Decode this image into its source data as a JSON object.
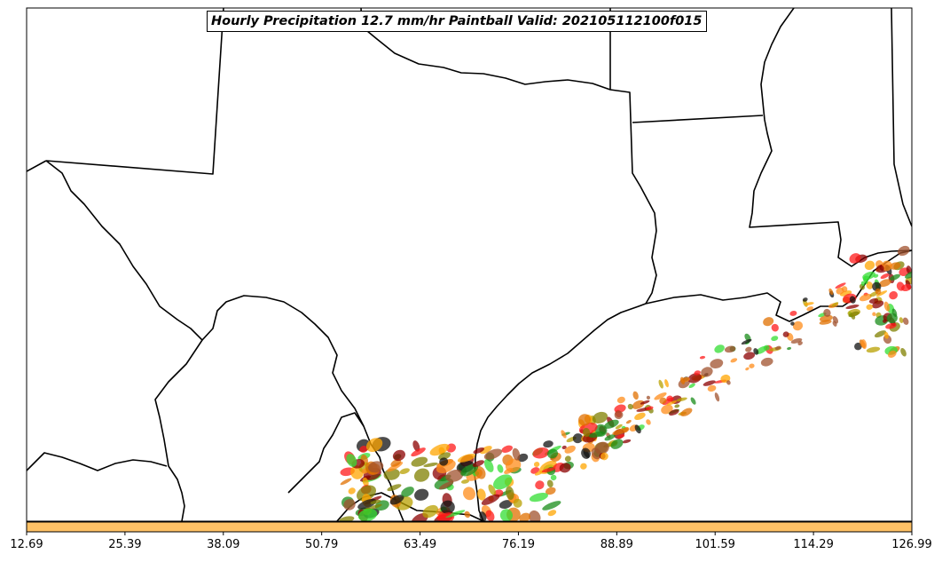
{
  "title": "Hourly Precipitation 12.7 mm/hr Paintball Valid: 202105112100f015",
  "colorbar": {
    "ticks": [
      "12.69",
      "25.39",
      "38.09",
      "50.79",
      "63.49",
      "76.19",
      "88.89",
      "101.59",
      "114.29",
      "126.99"
    ],
    "color": "#ffc266"
  },
  "paintball_colors": [
    "#ff1a1a",
    "#ff8c1a",
    "#808000",
    "#1a8c1a",
    "#33dd33",
    "#8b0000",
    "#e07000",
    "#ffa500",
    "#a0522d",
    "#111111",
    "#b8a000"
  ]
}
